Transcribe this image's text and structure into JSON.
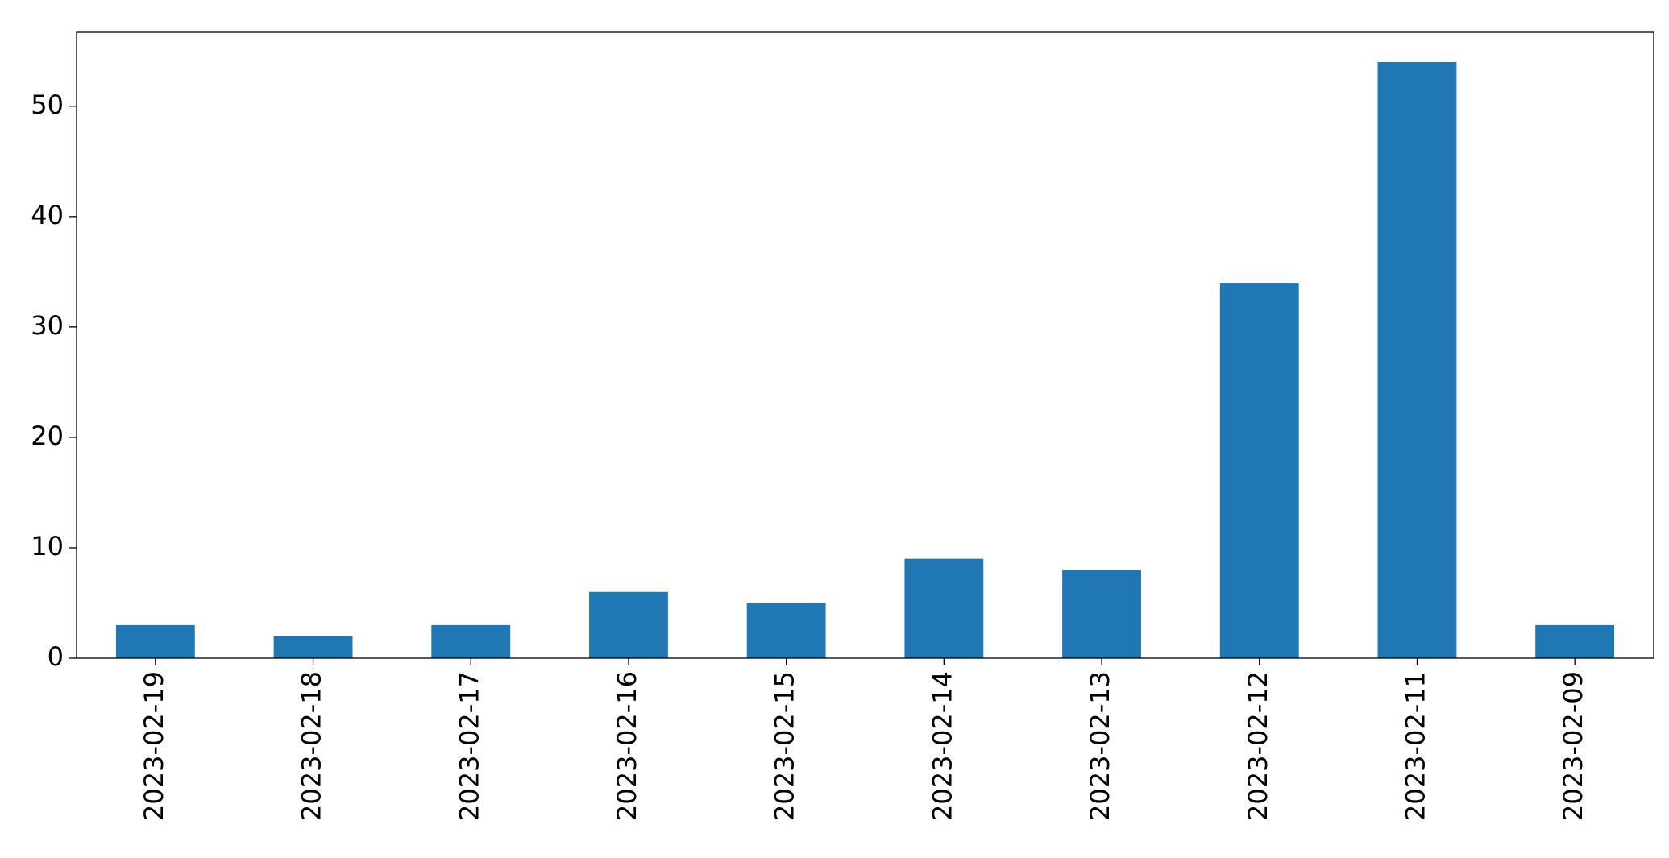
{
  "chart_data": {
    "type": "bar",
    "categories": [
      "2023-02-19",
      "2023-02-18",
      "2023-02-17",
      "2023-02-16",
      "2023-02-15",
      "2023-02-14",
      "2023-02-13",
      "2023-02-12",
      "2023-02-11",
      "2023-02-09"
    ],
    "values": [
      3,
      2,
      3,
      6,
      5,
      9,
      8,
      34,
      54,
      3
    ],
    "color": "#1f77b4",
    "ylim": [
      0,
      56.7
    ],
    "yticks": [
      0,
      10,
      20,
      30,
      40,
      50
    ],
    "grid": false
  }
}
